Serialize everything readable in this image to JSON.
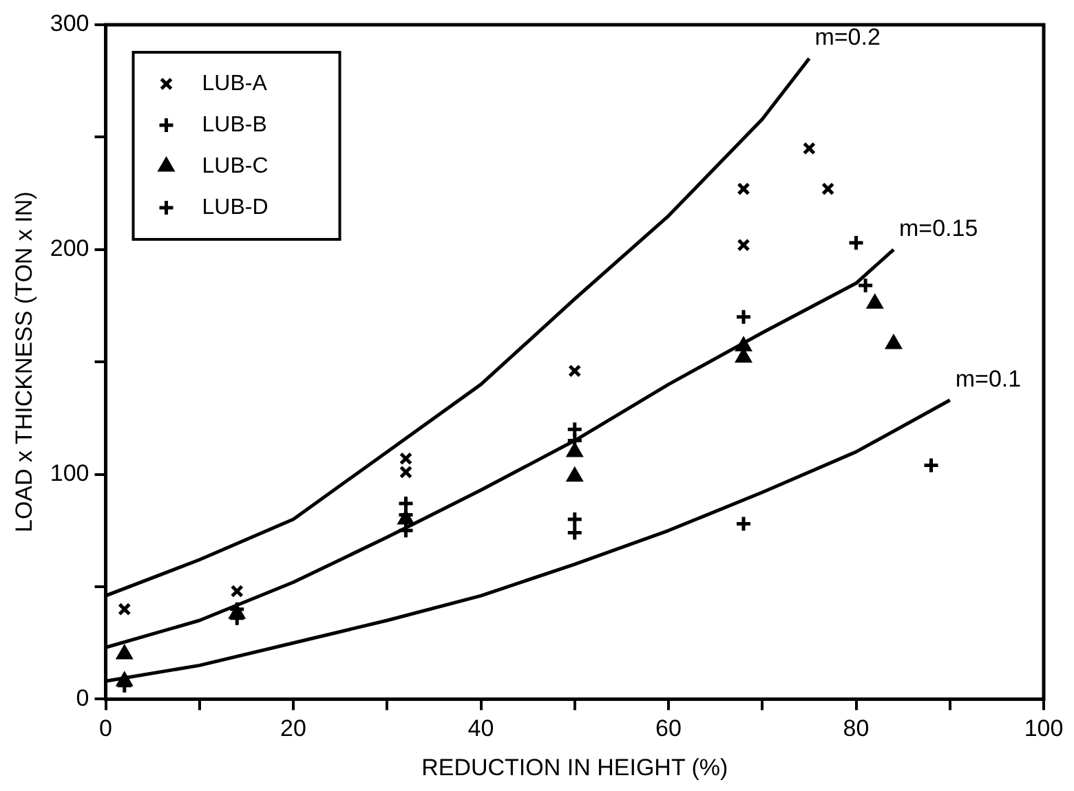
{
  "chart_data": {
    "type": "scatter",
    "xlabel": "REDUCTION IN HEIGHT (%)",
    "ylabel": "LOAD x THICKNESS (TON x IN)",
    "xlim": [
      0,
      100
    ],
    "ylim": [
      0,
      300
    ],
    "xticks": [
      0,
      {
        "value": 10,
        "label": null
      },
      20,
      {
        "value": 30,
        "label": null
      },
      40,
      {
        "value": 50,
        "label": null
      },
      60,
      {
        "value": 70,
        "label": null
      },
      80,
      {
        "value": 90,
        "label": null
      },
      100
    ],
    "yticks": [
      0,
      {
        "value": 50,
        "label": null
      },
      100,
      {
        "value": 150,
        "label": null
      },
      200,
      {
        "value": 250,
        "label": null
      },
      300
    ],
    "grid": false,
    "legend": "top left",
    "series": [
      {
        "name": "LUB-A",
        "color": "#000000",
        "marker": "x",
        "x": [
          2,
          14,
          32,
          32,
          50,
          68,
          68,
          75,
          77
        ],
        "values": [
          40,
          48,
          107,
          101,
          146,
          227,
          202,
          245,
          227
        ]
      },
      {
        "name": "LUB-B",
        "color": "#000000",
        "marker": "plus",
        "x": [
          14,
          32,
          32,
          50,
          50,
          68,
          80,
          81
        ],
        "values": [
          40,
          87,
          82,
          120,
          115,
          170,
          203,
          184
        ]
      },
      {
        "name": "LUB-C",
        "color": "#000000",
        "marker": "triangle",
        "x": [
          2,
          2,
          14,
          32,
          50,
          50,
          68,
          68,
          82,
          84
        ],
        "values": [
          8,
          20,
          38,
          80,
          110,
          99,
          152,
          157,
          176,
          158
        ]
      },
      {
        "name": "LUB-D",
        "color": "#000000",
        "marker": "plus",
        "x": [
          2,
          14,
          32,
          50,
          50,
          68,
          88
        ],
        "values": [
          6,
          36,
          75,
          80,
          74,
          78,
          104
        ]
      },
      {
        "type": "line",
        "color": "#000000",
        "marker": "none",
        "x": [
          0,
          10,
          20,
          30,
          40,
          50,
          60,
          70,
          75
        ],
        "values": [
          46,
          62,
          80,
          110,
          140,
          178,
          215,
          258,
          285
        ]
      },
      {
        "type": "line",
        "color": "#000000",
        "marker": "none",
        "x": [
          0,
          10,
          20,
          30,
          40,
          50,
          60,
          70,
          80,
          84
        ],
        "values": [
          23,
          35,
          52,
          72,
          93,
          115,
          140,
          163,
          185,
          200
        ]
      },
      {
        "type": "line",
        "color": "#000000",
        "marker": "none",
        "x": [
          0,
          10,
          20,
          30,
          40,
          50,
          60,
          70,
          80,
          90
        ],
        "values": [
          8,
          15,
          25,
          35,
          46,
          60,
          75,
          92,
          110,
          133
        ]
      }
    ],
    "annotations": [
      {
        "text": "m=0.2",
        "x": 75,
        "y": 285
      },
      {
        "text": "m=0.15",
        "x": 84,
        "y": 200
      },
      {
        "text": "m=0.1",
        "x": 90,
        "y": 133
      }
    ]
  }
}
